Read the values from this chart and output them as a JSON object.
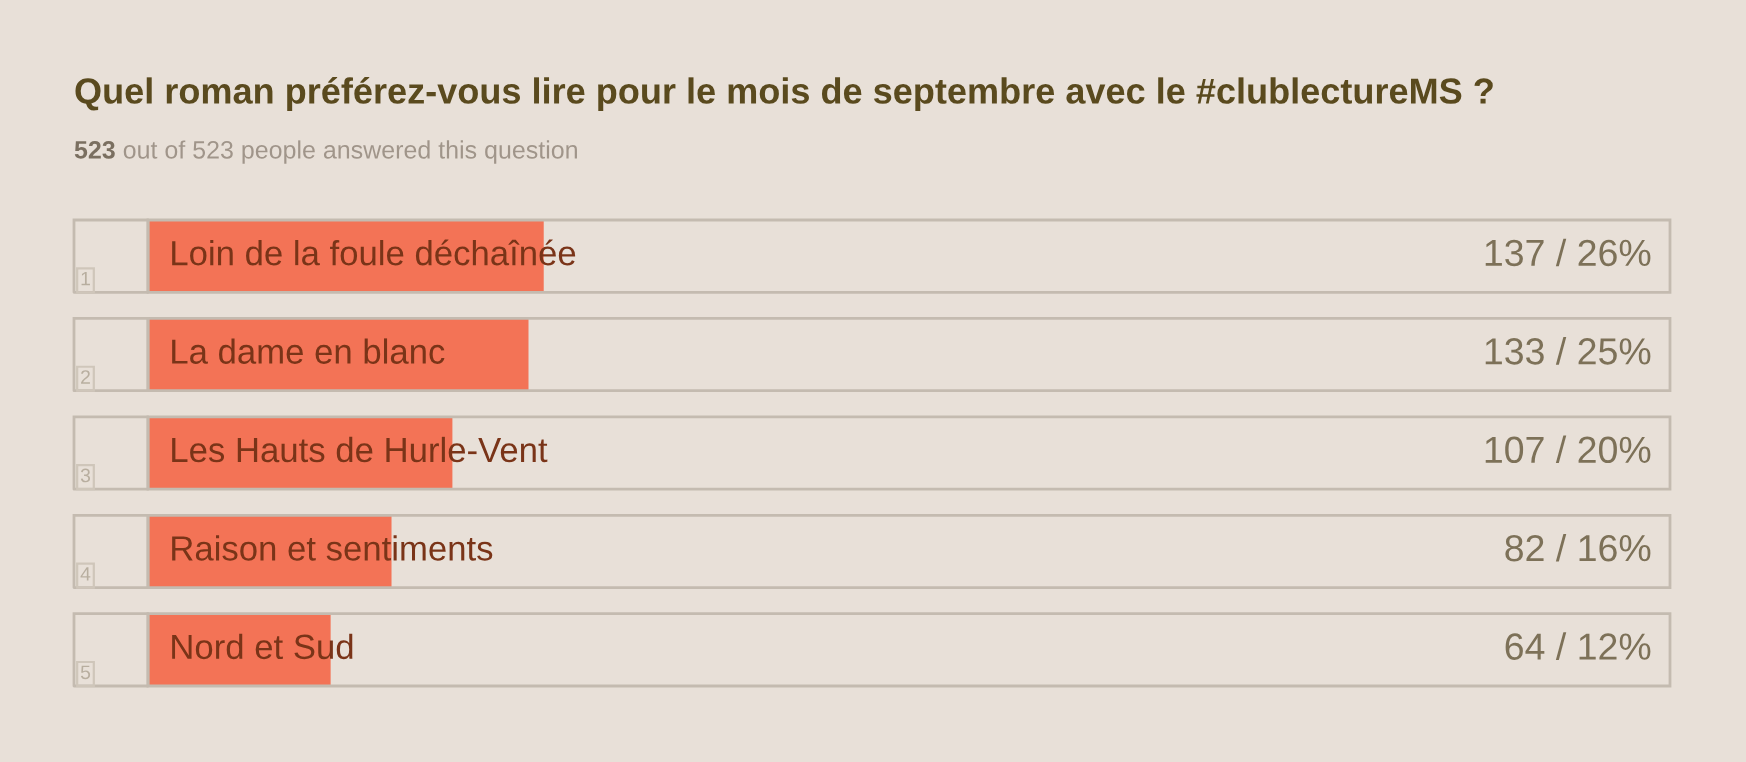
{
  "chart_data": {
    "type": "bar",
    "orientation": "horizontal",
    "title": "Quel roman préférez-vous lire pour le mois de septembre avec le #clublectureMS ?",
    "subtitle": "523 out of 523 people answered this question",
    "categories": [
      "Loin de la foule déchaînée",
      "La dame en blanc",
      "Les Hauts de Hurle-Vent",
      "Raison et sentiments",
      "Nord et Sud"
    ],
    "values": [
      26,
      25,
      20,
      16,
      12
    ],
    "value_labels": [
      "137 / 26%",
      "133 / 25%",
      "107 / 20%",
      "82 / 16%",
      "64 / 12%"
    ],
    "color": "#f37356",
    "xlim": [
      0,
      100
    ],
    "annotations": [
      "1",
      "2",
      "3",
      "4",
      "5"
    ],
    "legend": false,
    "tick_labels": false
  }
}
